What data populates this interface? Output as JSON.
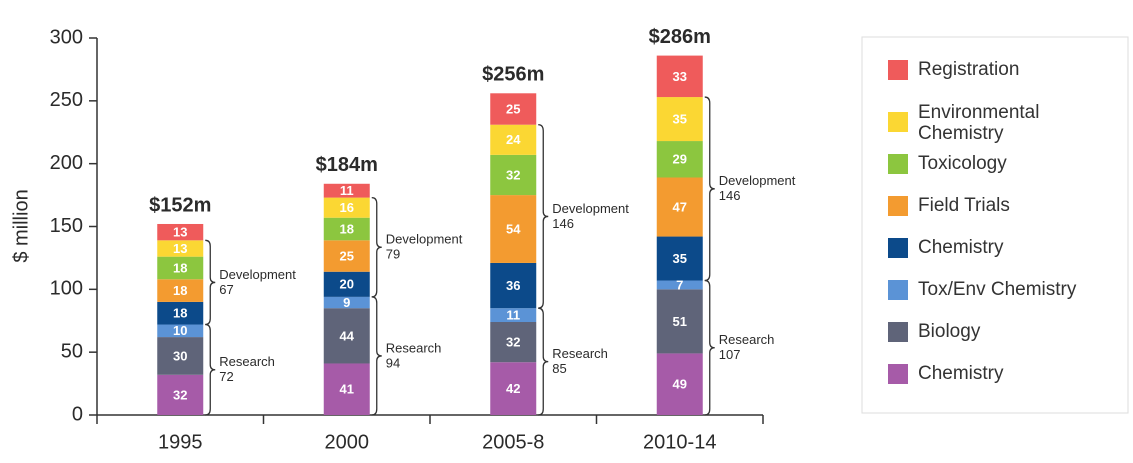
{
  "chart_data": {
    "type": "stacked-bar",
    "y_label": "$ million",
    "categories": [
      "1995",
      "2000",
      "2005-8",
      "2010-14"
    ],
    "ylim": [
      0,
      300
    ],
    "yticks": [
      0,
      50,
      100,
      150,
      200,
      250,
      300
    ],
    "series": [
      {
        "name": "Chemistry",
        "color": "#a65ba8",
        "values": [
          32,
          41,
          42,
          49
        ]
      },
      {
        "name": "Biology",
        "color": "#5f6479",
        "values": [
          30,
          44,
          32,
          51
        ]
      },
      {
        "name": "Tox/Env Chemistry",
        "color": "#5b93d6",
        "values": [
          10,
          9,
          11,
          7
        ]
      },
      {
        "name": "Chemistry",
        "color": "#0c4a8a",
        "values": [
          18,
          20,
          36,
          35
        ]
      },
      {
        "name": "Field Trials",
        "color": "#f39b30",
        "values": [
          18,
          25,
          54,
          47
        ]
      },
      {
        "name": "Toxicology",
        "color": "#8cc63f",
        "values": [
          18,
          18,
          32,
          29
        ]
      },
      {
        "name": "Environmental Chemistry",
        "color": "#fbd733",
        "values": [
          13,
          16,
          24,
          35
        ]
      },
      {
        "name": "Registration",
        "color": "#ef5b5b",
        "values": [
          13,
          11,
          25,
          33
        ]
      }
    ],
    "totals": {
      "values": [
        152,
        184,
        256,
        286
      ],
      "value_labels": [
        "$152m",
        "$184m",
        "$256m",
        "$286m"
      ]
    },
    "groups": [
      {
        "name": "Research",
        "series_from": 0,
        "series_to": 2,
        "values": [
          72,
          94,
          85,
          107
        ]
      },
      {
        "name": "Development",
        "series_from": 3,
        "series_to": 6,
        "values": [
          67,
          79,
          146,
          146
        ]
      }
    ]
  }
}
